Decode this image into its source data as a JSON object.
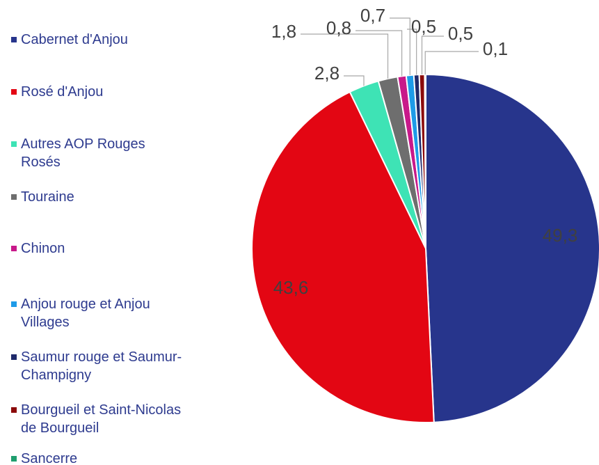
{
  "chart_data": {
    "type": "pie",
    "categories": [
      "Cabernet d'Anjou",
      "Rosé d'Anjou",
      "Autres AOP Rouges Rosés",
      "Touraine",
      "Chinon",
      "Anjou rouge et Anjou Villages",
      "Saumur rouge et Saumur-Champigny",
      "Bourgueil et Saint-Nicolas de Bourgueil",
      "Sancerre"
    ],
    "values": [
      49.3,
      43.6,
      2.8,
      1.8,
      0.8,
      0.7,
      0.5,
      0.5,
      0.1
    ],
    "value_labels": [
      "49,3",
      "43,6",
      "2,8",
      "1,8",
      "0,8",
      "0,7",
      "0,5",
      "0,5",
      "0,1"
    ],
    "colors": [
      "#27358c",
      "#e30613",
      "#3ee3b5",
      "#6e6e6e",
      "#c8198a",
      "#1e9be8",
      "#1f2a6b",
      "#8b0a0a",
      "#1f9e6e"
    ],
    "legend": "left"
  }
}
